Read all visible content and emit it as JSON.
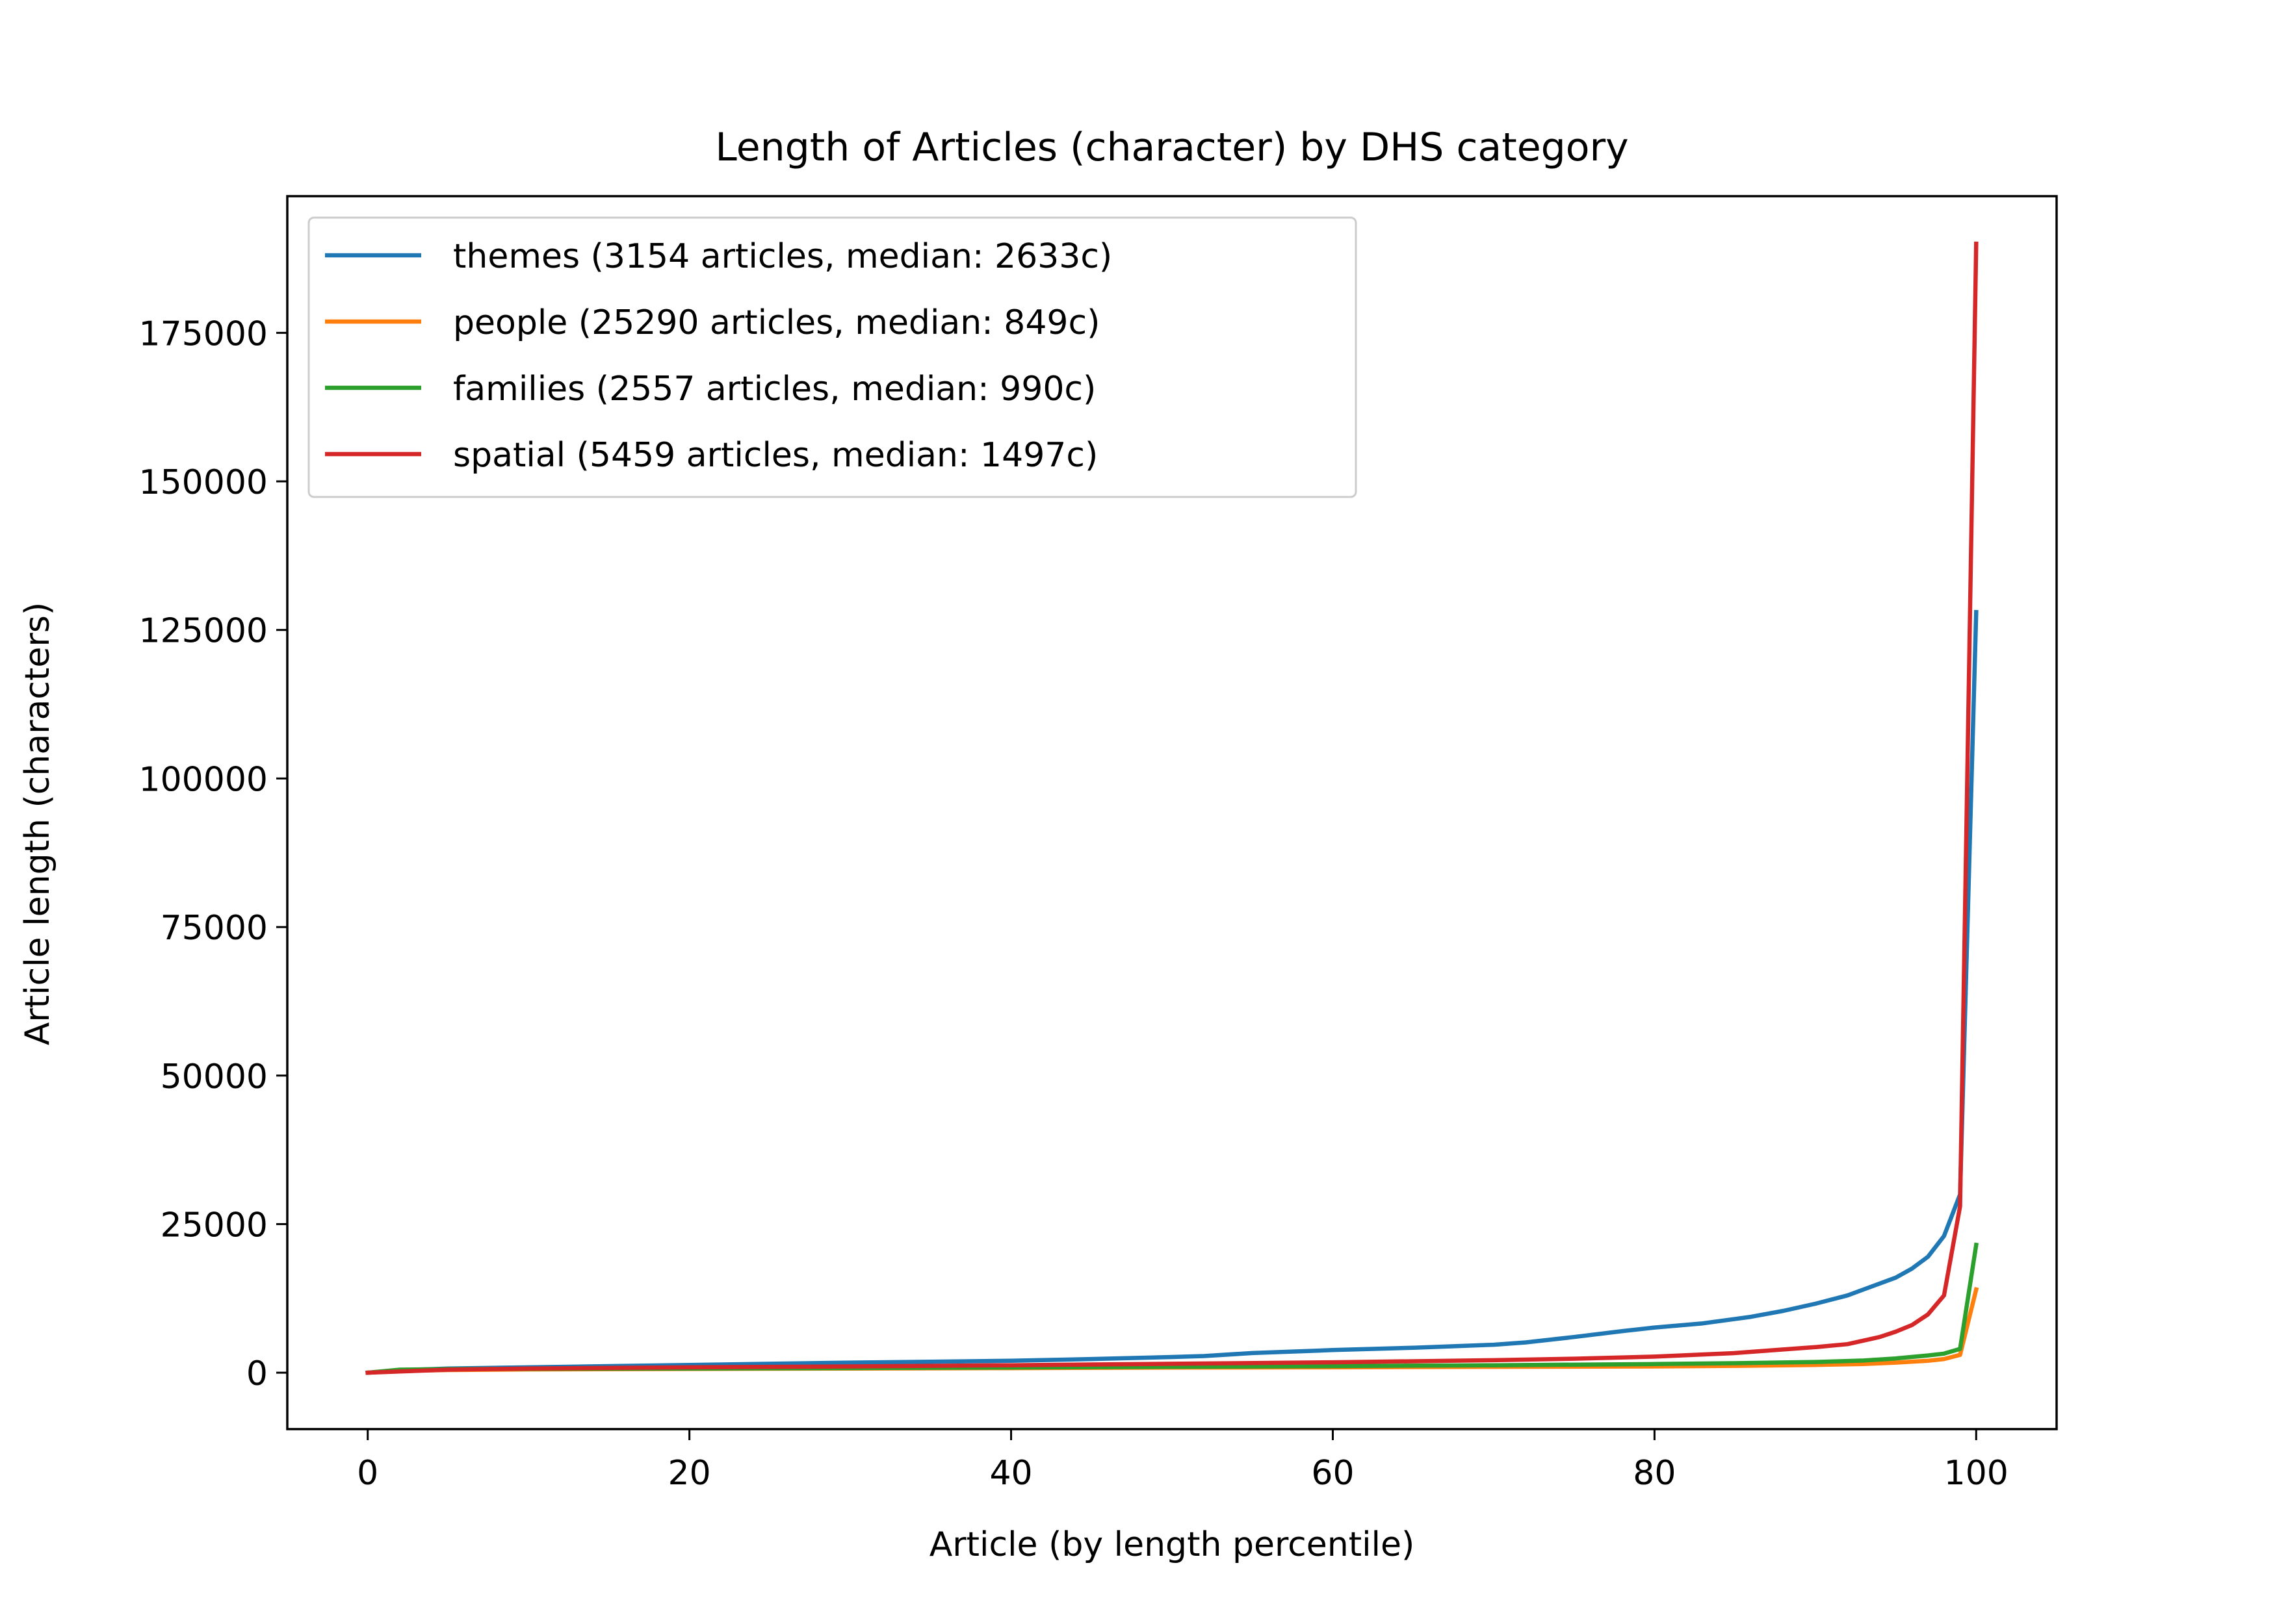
{
  "chart_data": {
    "type": "line",
    "title": "Length of Articles (character) by DHS category",
    "xlabel": "Article (by length percentile)",
    "ylabel": "Article length (characters)",
    "xlim": [
      -5,
      105
    ],
    "ylim": [
      -9500,
      198000
    ],
    "x_ticks": [
      0,
      20,
      40,
      60,
      80,
      100
    ],
    "y_ticks": [
      0,
      25000,
      50000,
      75000,
      100000,
      125000,
      150000,
      175000
    ],
    "grid": false,
    "legend_position": "top-left",
    "series": [
      {
        "name": "themes (3154 articles, median: 2633c)",
        "color": "#1f77b4",
        "x": [
          0,
          2,
          5,
          10,
          15,
          20,
          25,
          30,
          35,
          40,
          45,
          50,
          52,
          55,
          60,
          65,
          70,
          72,
          75,
          78,
          80,
          83,
          86,
          88,
          90,
          92,
          93,
          95,
          96,
          97,
          98,
          99,
          100
        ],
        "y": [
          0,
          400,
          700,
          900,
          1100,
          1300,
          1500,
          1700,
          1850,
          2000,
          2300,
          2633,
          2800,
          3300,
          3800,
          4200,
          4700,
          5100,
          6000,
          7000,
          7600,
          8300,
          9400,
          10400,
          11600,
          13000,
          14000,
          16000,
          17500,
          19500,
          23000,
          30000,
          128000
        ]
      },
      {
        "name": "people (25290 articles, median: 849c)",
        "color": "#ff7f0e",
        "x": [
          0,
          2,
          5,
          10,
          20,
          30,
          40,
          50,
          60,
          70,
          80,
          85,
          90,
          93,
          95,
          97,
          98,
          99,
          100
        ],
        "y": [
          0,
          300,
          450,
          550,
          620,
          700,
          770,
          849,
          900,
          980,
          1050,
          1150,
          1300,
          1450,
          1700,
          2000,
          2300,
          3000,
          14000
        ]
      },
      {
        "name": "families (2557 articles, median: 990c)",
        "color": "#2ca02c",
        "x": [
          0,
          2,
          5,
          10,
          20,
          30,
          40,
          50,
          60,
          70,
          80,
          85,
          90,
          93,
          95,
          97,
          98,
          99,
          100
        ],
        "y": [
          0,
          500,
          600,
          650,
          700,
          780,
          880,
          990,
          1100,
          1250,
          1450,
          1600,
          1800,
          2050,
          2400,
          2900,
          3200,
          4000,
          21500
        ]
      },
      {
        "name": "spatial (5459 articles, median: 1497c)",
        "color": "#d62728",
        "x": [
          0,
          2,
          5,
          10,
          20,
          30,
          40,
          50,
          60,
          70,
          75,
          80,
          85,
          88,
          90,
          92,
          93,
          94,
          95,
          96,
          97,
          98,
          99,
          100
        ],
        "y": [
          0,
          200,
          500,
          700,
          900,
          1050,
          1250,
          1497,
          1750,
          2100,
          2350,
          2700,
          3300,
          3900,
          4300,
          4800,
          5400,
          6000,
          6900,
          8000,
          9800,
          13000,
          28000,
          190000
        ]
      }
    ]
  }
}
